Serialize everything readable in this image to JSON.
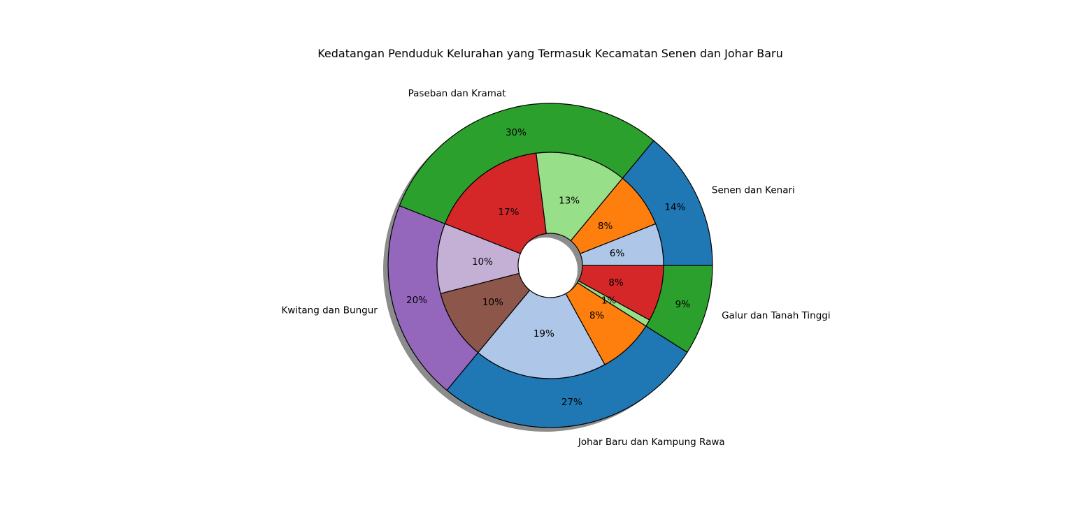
{
  "chart_data": {
    "type": "pie",
    "title": "Kedatangan Penduduk Kelurahan yang Termasuk Kecamatan Senen dan Johar Baru",
    "outer_ring": [
      {
        "label": "Senen dan Kenari",
        "pct_label": "14%",
        "value": 14,
        "color": "#1f77b4"
      },
      {
        "label": "Paseban dan Kramat",
        "pct_label": "30%",
        "value": 30,
        "color": "#2ca02c"
      },
      {
        "label": "Kwitang dan Bungur",
        "pct_label": "20%",
        "value": 20,
        "color": "#9467bd"
      },
      {
        "label": "Johar Baru dan Kampung Rawa",
        "pct_label": "27%",
        "value": 27,
        "color": "#1f77b4"
      },
      {
        "label": "Galur dan Tanah Tinggi",
        "pct_label": "9%",
        "value": 9,
        "color": "#2ca02c"
      }
    ],
    "inner_ring": [
      {
        "pct_label": "6%",
        "value": 6,
        "color": "#aec7e8"
      },
      {
        "pct_label": "8%",
        "value": 8,
        "color": "#ff7f0e"
      },
      {
        "pct_label": "13%",
        "value": 13,
        "color": "#98df8a"
      },
      {
        "pct_label": "17%",
        "value": 17,
        "color": "#d62728"
      },
      {
        "pct_label": "10%",
        "value": 10,
        "color": "#c5b0d5"
      },
      {
        "pct_label": "10%",
        "value": 10,
        "color": "#8c564b"
      },
      {
        "pct_label": "19%",
        "value": 19,
        "color": "#aec7e8"
      },
      {
        "pct_label": "8%",
        "value": 8,
        "color": "#ff7f0e"
      },
      {
        "pct_label": "1%",
        "value": 1,
        "color": "#98df8a"
      },
      {
        "pct_label": "8%",
        "value": 8,
        "color": "#d62728"
      }
    ],
    "start_angle_deg": 0,
    "direction": "counterclockwise",
    "shadow": true,
    "edge_color": "#000000"
  }
}
